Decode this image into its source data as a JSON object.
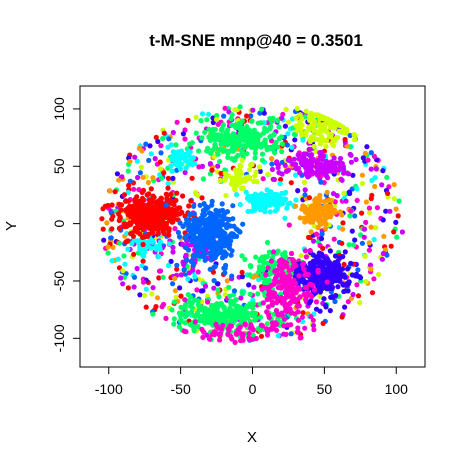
{
  "chart_data": {
    "type": "scatter",
    "title": "t-M-SNE mnp@40 = 0.3501",
    "xlabel": "X",
    "ylabel": "Y",
    "xlim": [
      -120,
      120
    ],
    "ylim": [
      -125,
      120
    ],
    "xticks": [
      -100,
      -50,
      0,
      50,
      100
    ],
    "yticks": [
      -100,
      -50,
      0,
      50,
      100
    ],
    "grid": false,
    "legend": "none",
    "embedding_radius": 105,
    "clusters": [
      {
        "color": "#00FF66",
        "center": [
          -20,
          -80
        ],
        "spread": [
          30,
          12
        ],
        "count": 260
      },
      {
        "color": "#00FF66",
        "center": [
          -10,
          75
        ],
        "spread": [
          25,
          15
        ],
        "count": 220
      },
      {
        "color": "#00FF66",
        "center": [
          15,
          -40
        ],
        "spread": [
          15,
          15
        ],
        "count": 90
      },
      {
        "color": "#CCFF00",
        "center": [
          50,
          85
        ],
        "spread": [
          18,
          12
        ],
        "count": 120
      },
      {
        "color": "#CCFF00",
        "center": [
          -10,
          40
        ],
        "spread": [
          12,
          10
        ],
        "count": 60
      },
      {
        "color": "#CC00FF",
        "center": [
          45,
          50
        ],
        "spread": [
          20,
          8
        ],
        "count": 130
      },
      {
        "color": "#CC00FF",
        "center": [
          -40,
          -25
        ],
        "spread": [
          15,
          12
        ],
        "count": 60
      },
      {
        "color": "#00FFFF",
        "center": [
          10,
          20
        ],
        "spread": [
          15,
          8
        ],
        "count": 110
      },
      {
        "color": "#00FFFF",
        "center": [
          -50,
          55
        ],
        "spread": [
          8,
          7
        ],
        "count": 50
      },
      {
        "color": "#00FFFF",
        "center": [
          -75,
          -20
        ],
        "spread": [
          10,
          8
        ],
        "count": 40
      },
      {
        "color": "#FF0000",
        "center": [
          -70,
          8
        ],
        "spread": [
          18,
          14
        ],
        "count": 340
      },
      {
        "color": "#0066FF",
        "center": [
          -30,
          -10
        ],
        "spread": [
          14,
          22
        ],
        "count": 330
      },
      {
        "color": "#FF9900",
        "center": [
          45,
          10
        ],
        "spread": [
          9,
          10
        ],
        "count": 110
      },
      {
        "color": "#3300FF",
        "center": [
          48,
          -45
        ],
        "spread": [
          16,
          14
        ],
        "count": 280
      },
      {
        "color": "#FF00CC",
        "center": [
          25,
          -55
        ],
        "spread": [
          15,
          28
        ],
        "count": 180
      },
      {
        "color": "#FF00CC",
        "center": [
          -10,
          -95
        ],
        "spread": [
          30,
          8
        ],
        "count": 60
      }
    ],
    "halo_colors": [
      "#00FF66",
      "#CCFF00",
      "#CC00FF",
      "#00FFFF",
      "#FF0000",
      "#0066FF",
      "#FF9900",
      "#3300FF",
      "#FF00CC"
    ],
    "halo_count": 900,
    "seed": 40
  }
}
